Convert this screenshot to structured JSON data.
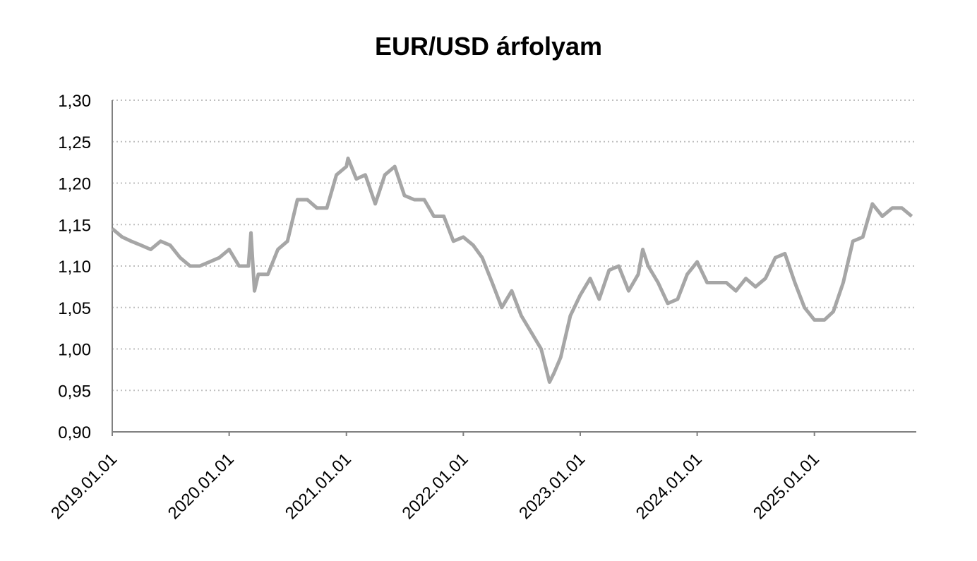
{
  "chart_data": {
    "type": "line",
    "title": "EUR/USD árfolyam",
    "x": [
      "2019.01.01",
      "2019.02.01",
      "2019.03.01",
      "2019.04.01",
      "2019.05.01",
      "2019.06.01",
      "2019.07.01",
      "2019.08.01",
      "2019.09.01",
      "2019.10.01",
      "2019.11.01",
      "2019.12.01",
      "2020.01.01",
      "2020.02.01",
      "2020.03.01",
      "2020.03.09",
      "2020.03.20",
      "2020.04.01",
      "2020.05.01",
      "2020.06.01",
      "2020.07.01",
      "2020.08.01",
      "2020.09.01",
      "2020.10.01",
      "2020.11.01",
      "2020.12.01",
      "2021.01.01",
      "2021.01.06",
      "2021.02.01",
      "2021.03.01",
      "2021.04.01",
      "2021.05.01",
      "2021.06.01",
      "2021.07.01",
      "2021.08.01",
      "2021.09.01",
      "2021.10.01",
      "2021.11.01",
      "2021.12.01",
      "2022.01.01",
      "2022.02.01",
      "2022.03.01",
      "2022.04.01",
      "2022.05.01",
      "2022.06.01",
      "2022.07.01",
      "2022.08.01",
      "2022.09.01",
      "2022.09.27",
      "2022.10.10",
      "2022.11.01",
      "2022.12.01",
      "2023.01.01",
      "2023.02.01",
      "2023.03.01",
      "2023.04.01",
      "2023.05.01",
      "2023.06.01",
      "2023.07.01",
      "2023.07.15",
      "2023.08.01",
      "2023.09.01",
      "2023.10.01",
      "2023.11.01",
      "2023.12.01",
      "2024.01.01",
      "2024.02.01",
      "2024.03.01",
      "2024.04.01",
      "2024.05.01",
      "2024.06.01",
      "2024.07.01",
      "2024.08.01",
      "2024.09.01",
      "2024.10.01",
      "2024.11.01",
      "2024.12.01",
      "2025.01.01",
      "2025.02.01",
      "2025.03.01",
      "2025.04.01",
      "2025.05.01",
      "2025.06.01",
      "2025.07.01",
      "2025.08.01",
      "2025.09.01",
      "2025.10.01",
      "2025.11.01"
    ],
    "values": [
      1.145,
      1.135,
      1.13,
      1.125,
      1.12,
      1.13,
      1.125,
      1.11,
      1.1,
      1.1,
      1.105,
      1.11,
      1.12,
      1.1,
      1.1,
      1.14,
      1.07,
      1.09,
      1.09,
      1.12,
      1.13,
      1.18,
      1.18,
      1.17,
      1.17,
      1.21,
      1.22,
      1.23,
      1.205,
      1.21,
      1.175,
      1.21,
      1.22,
      1.185,
      1.18,
      1.18,
      1.16,
      1.16,
      1.13,
      1.135,
      1.125,
      1.11,
      1.08,
      1.05,
      1.07,
      1.04,
      1.02,
      1.0,
      0.96,
      0.97,
      0.99,
      1.04,
      1.065,
      1.085,
      1.06,
      1.095,
      1.1,
      1.07,
      1.09,
      1.12,
      1.1,
      1.08,
      1.055,
      1.06,
      1.09,
      1.105,
      1.08,
      1.08,
      1.08,
      1.07,
      1.085,
      1.075,
      1.085,
      1.11,
      1.115,
      1.08,
      1.05,
      1.035,
      1.035,
      1.045,
      1.08,
      1.13,
      1.135,
      1.175,
      1.16,
      1.17,
      1.17,
      1.16
    ],
    "color": "#a6a6a6",
    "xlim": [
      "2019.01.01",
      "2025.11.15"
    ],
    "xticks": [
      "2019.01.01",
      "2020.01.01",
      "2021.01.01",
      "2022.01.01",
      "2023.01.01",
      "2024.01.01",
      "2025.01.01"
    ],
    "ylim": [
      0.9,
      1.3
    ],
    "yticks": [
      {
        "value": 0.9,
        "label": "0,90"
      },
      {
        "value": 0.95,
        "label": "0,95"
      },
      {
        "value": 1.0,
        "label": "1,00"
      },
      {
        "value": 1.05,
        "label": "1,05"
      },
      {
        "value": 1.1,
        "label": "1,10"
      },
      {
        "value": 1.15,
        "label": "1,15"
      },
      {
        "value": 1.2,
        "label": "1,20"
      },
      {
        "value": 1.25,
        "label": "1,25"
      },
      {
        "value": 1.3,
        "label": "1,30"
      }
    ],
    "grid": true
  }
}
